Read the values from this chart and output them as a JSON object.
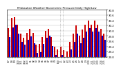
{
  "title": "Milwaukee Weather Barometric Pressure Daily High/Low",
  "ylim": [
    29.0,
    30.8
  ],
  "ytick_labels": [
    "29.0",
    "29.2",
    "29.4",
    "29.6",
    "29.8",
    "30.0",
    "30.2",
    "30.4",
    "30.6",
    "30.8"
  ],
  "ytick_vals": [
    29.0,
    29.2,
    29.4,
    29.6,
    29.8,
    30.0,
    30.2,
    30.4,
    30.6,
    30.8
  ],
  "high_color": "#cc0000",
  "low_color": "#0000cc",
  "background_color": "#ffffff",
  "dates": [
    "1/7",
    "1/8",
    "1/9",
    "1/10",
    "1/11",
    "1/12",
    "1/13",
    "E1",
    "E2",
    "E3",
    "E4",
    "E5",
    "E6",
    "E7",
    "E8",
    "E9",
    "E10",
    "2/1",
    "2/2",
    "2/3",
    "2/4",
    "2/5",
    "2/6",
    "2/7",
    "2/8",
    "2/9",
    "2/10",
    "2/11",
    "2/12",
    "2/13",
    "2/14",
    "2/15"
  ],
  "highs": [
    30.1,
    30.48,
    30.52,
    30.22,
    29.9,
    29.74,
    29.92,
    30.08,
    29.92,
    29.46,
    29.5,
    29.76,
    30.0,
    30.08,
    29.76,
    29.38,
    29.28,
    29.4,
    29.26,
    29.2,
    29.58,
    29.9,
    30.2,
    29.82,
    30.04,
    30.24,
    30.38,
    30.24,
    30.38,
    30.22,
    30.08,
    29.9
  ],
  "lows": [
    29.76,
    30.12,
    30.24,
    29.9,
    29.58,
    29.46,
    29.64,
    29.78,
    29.52,
    29.14,
    29.18,
    29.5,
    29.74,
    29.82,
    29.42,
    29.06,
    28.96,
    29.08,
    28.98,
    28.94,
    29.28,
    29.58,
    29.88,
    29.52,
    29.74,
    29.96,
    30.1,
    29.96,
    30.1,
    29.96,
    29.82,
    29.64
  ],
  "dashed_vlines": [
    16.5,
    17.5
  ],
  "bar_width": 0.45
}
